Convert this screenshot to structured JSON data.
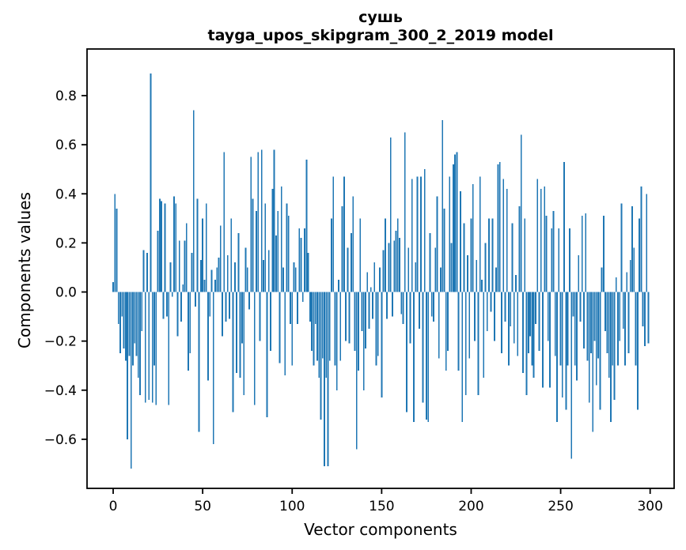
{
  "figure": {
    "title_word": "сушь",
    "title_model": "tayga_upos_skipgram_300_2_2019 model"
  },
  "chart_data": {
    "type": "bar",
    "title": "сушь — tayga_upos_skipgram_300_2_2019 model",
    "xlabel": "Vector components",
    "ylabel": "Components values",
    "bar_color": "#1f77b4",
    "axis_color": "#000000",
    "background_color": "#ffffff",
    "grid": false,
    "legend": null,
    "xlim": [
      -14.6,
      313.4
    ],
    "ylim": [
      -0.8,
      0.99
    ],
    "xticks": [
      0,
      50,
      100,
      150,
      200,
      250,
      300
    ],
    "xtick_labels": [
      "0",
      "50",
      "100",
      "150",
      "200",
      "250",
      "300"
    ],
    "yticks": [
      0.8,
      0.6,
      0.4,
      0.2,
      0.0,
      -0.2,
      -0.4,
      -0.6
    ],
    "ytick_labels": [
      "0.8",
      "0.6",
      "0.4",
      "0.2",
      "0.0",
      "−0.2",
      "−0.4",
      "−0.6"
    ],
    "x_is_index": true,
    "n_components": 300,
    "values": [
      0.04,
      0.4,
      0.34,
      -0.13,
      -0.25,
      -0.1,
      -0.23,
      -0.28,
      -0.6,
      -0.26,
      -0.72,
      -0.3,
      -0.21,
      -0.26,
      -0.35,
      -0.42,
      -0.16,
      0.17,
      -0.45,
      0.16,
      -0.44,
      0.89,
      -0.45,
      -0.3,
      -0.46,
      0.25,
      0.38,
      0.37,
      -0.11,
      0.36,
      -0.1,
      -0.46,
      0.12,
      -0.02,
      0.39,
      0.36,
      -0.18,
      0.21,
      -0.12,
      0.03,
      0.21,
      0.28,
      -0.32,
      -0.25,
      0.16,
      0.74,
      -0.06,
      0.38,
      -0.57,
      0.13,
      0.3,
      0.05,
      0.36,
      -0.36,
      -0.1,
      0.09,
      -0.62,
      0.05,
      0.1,
      0.14,
      0.27,
      -0.18,
      0.57,
      -0.12,
      0.15,
      -0.11,
      0.3,
      -0.49,
      0.12,
      -0.33,
      0.24,
      -0.35,
      -0.21,
      -0.42,
      0.18,
      0.1,
      -0.07,
      0.55,
      0.38,
      -0.46,
      0.33,
      0.57,
      -0.2,
      0.58,
      0.13,
      0.36,
      -0.51,
      0.17,
      -0.24,
      0.42,
      0.58,
      0.23,
      0.33,
      -0.29,
      0.43,
      0.1,
      -0.34,
      0.36,
      0.31,
      -0.13,
      -0.3,
      0.12,
      0.1,
      -0.13,
      0.26,
      0.22,
      -0.04,
      0.26,
      0.54,
      0.16,
      -0.12,
      -0.24,
      -0.3,
      -0.13,
      -0.28,
      -0.35,
      -0.52,
      -0.27,
      -0.71,
      -0.35,
      -0.71,
      -0.28,
      0.3,
      0.47,
      -0.3,
      -0.4,
      0.05,
      -0.28,
      0.35,
      0.47,
      -0.2,
      0.18,
      -0.21,
      0.24,
      0.39,
      -0.24,
      -0.64,
      -0.32,
      0.3,
      -0.16,
      -0.4,
      -0.23,
      0.08,
      -0.15,
      0.02,
      -0.11,
      0.12,
      -0.3,
      -0.26,
      0.1,
      -0.43,
      0.17,
      0.3,
      -0.11,
      0.2,
      0.63,
      -0.1,
      0.21,
      0.25,
      0.3,
      0.22,
      -0.09,
      -0.13,
      0.65,
      -0.49,
      0.18,
      -0.21,
      0.46,
      -0.53,
      0.12,
      0.47,
      -0.15,
      0.47,
      -0.45,
      0.5,
      -0.52,
      -0.53,
      0.24,
      -0.1,
      -0.12,
      0.18,
      0.39,
      -0.27,
      0.1,
      0.7,
      0.34,
      -0.32,
      -0.24,
      0.47,
      0.2,
      0.52,
      0.56,
      0.57,
      -0.32,
      0.41,
      -0.53,
      0.28,
      -0.42,
      0.15,
      -0.27,
      0.3,
      0.44,
      -0.2,
      0.13,
      -0.42,
      0.47,
      0.05,
      -0.35,
      0.2,
      -0.16,
      0.3,
      -0.08,
      0.3,
      -0.2,
      0.1,
      0.52,
      0.53,
      -0.25,
      0.46,
      -0.12,
      0.42,
      -0.3,
      -0.14,
      0.28,
      -0.21,
      0.07,
      -0.26,
      0.35,
      0.64,
      -0.33,
      0.3,
      -0.42,
      -0.25,
      -0.18,
      -0.3,
      -0.35,
      -0.13,
      0.46,
      -0.24,
      0.42,
      -0.39,
      0.43,
      0.31,
      -0.2,
      -0.39,
      0.26,
      0.33,
      -0.26,
      -0.53,
      0.26,
      -0.3,
      -0.43,
      0.53,
      -0.48,
      -0.3,
      0.26,
      -0.68,
      -0.1,
      -0.3,
      -0.36,
      0.15,
      -0.12,
      0.31,
      -0.23,
      0.32,
      -0.28,
      -0.45,
      -0.25,
      -0.57,
      -0.2,
      -0.38,
      -0.27,
      -0.48,
      0.1,
      0.31,
      -0.16,
      -0.25,
      -0.35,
      -0.53,
      -0.3,
      -0.44,
      0.06,
      -0.3,
      -0.2,
      0.36,
      -0.15,
      -0.3,
      0.08,
      -0.25,
      0.13,
      0.35,
      0.18,
      -0.3,
      -0.48,
      0.3,
      0.43,
      -0.14,
      -0.22,
      0.4,
      -0.21
    ]
  }
}
